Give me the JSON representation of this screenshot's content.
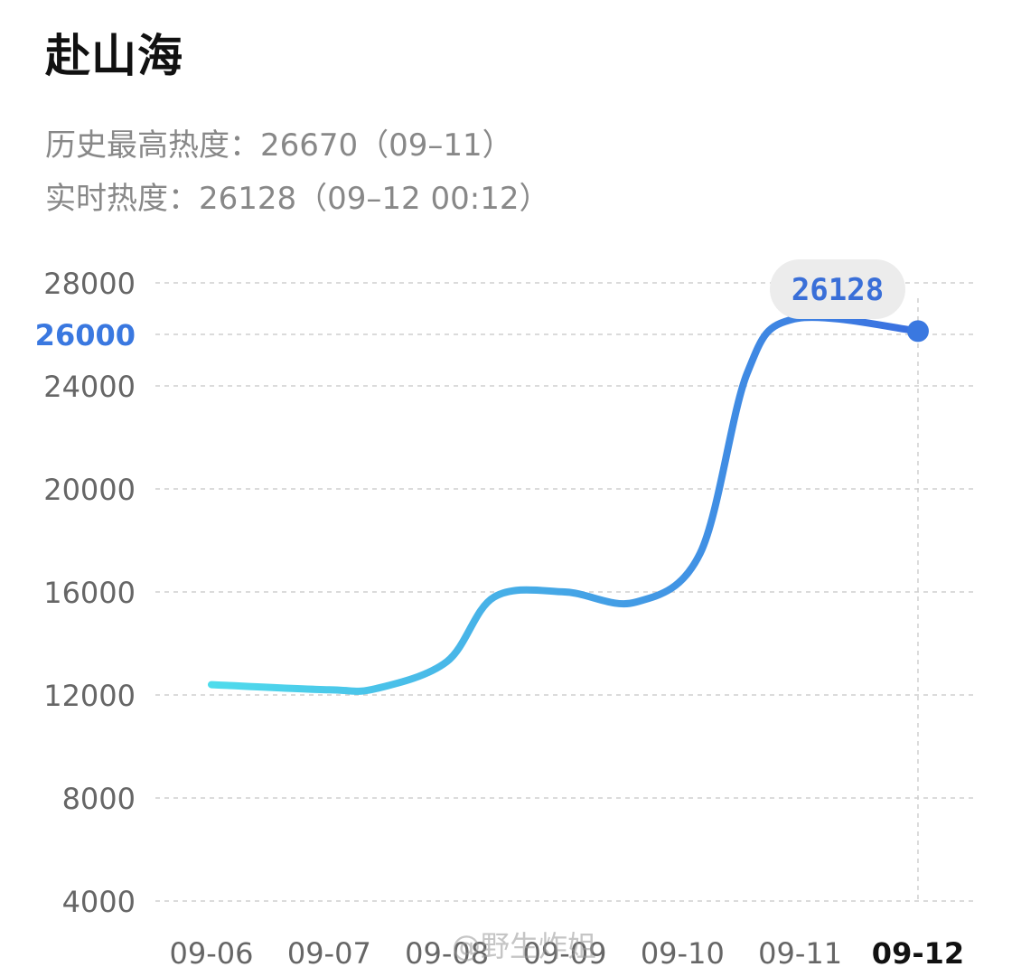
{
  "header": {
    "title": "赴山海",
    "peak_text": "历史最高热度：26670（09–11）",
    "realtime_text": "实时热度：26128（09–12 00:12）"
  },
  "watermark": "@野生炸姐",
  "colors": {
    "line_start": "#4fdcec",
    "line_end": "#3a6fe0",
    "highlight": "#3a78e0",
    "bubble_bg": "#ececec"
  },
  "chart_data": {
    "type": "line",
    "title": "",
    "xlabel": "",
    "ylabel": "",
    "categories": [
      "09-06",
      "09-07",
      "09-08",
      "09-09",
      "09-10",
      "09-11",
      "09-12"
    ],
    "x_highlight": "09-12",
    "y_ticks": [
      4000,
      8000,
      12000,
      16000,
      20000,
      24000,
      26000,
      28000
    ],
    "y_highlight": 26000,
    "ylim": [
      4000,
      28000
    ],
    "grid": true,
    "series": [
      {
        "points": [
          {
            "x": 0.0,
            "y": 12400
          },
          {
            "x": 1.0,
            "y": 12200
          },
          {
            "x": 1.4,
            "y": 12250
          },
          {
            "x": 2.0,
            "y": 13300
          },
          {
            "x": 2.4,
            "y": 15800
          },
          {
            "x": 3.0,
            "y": 16000
          },
          {
            "x": 3.6,
            "y": 15600
          },
          {
            "x": 4.15,
            "y": 17500
          },
          {
            "x": 4.55,
            "y": 24500
          },
          {
            "x": 4.95,
            "y": 26600
          },
          {
            "x": 6.0,
            "y": 26128
          }
        ]
      }
    ],
    "current_point": {
      "label": "09-12",
      "value": 26128,
      "display": "26128"
    }
  }
}
